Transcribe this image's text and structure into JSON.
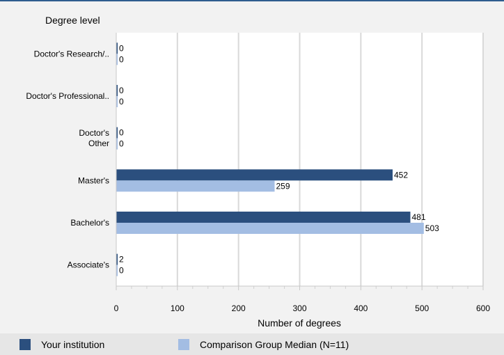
{
  "chart_data": {
    "type": "bar",
    "orientation": "horizontal",
    "ylabel": "Degree level",
    "xlabel": "Number of degrees",
    "xlim": [
      0,
      600
    ],
    "xticks": [
      0,
      100,
      200,
      300,
      400,
      500,
      600
    ],
    "grid": true,
    "categories": [
      [
        "Doctor's  Research/.."
      ],
      [
        "Doctor's  Professional.."
      ],
      [
        "Doctor's",
        "Other"
      ],
      [
        "Master's"
      ],
      [
        "Bachelor's"
      ],
      [
        "Associate's"
      ]
    ],
    "series": [
      {
        "name": "Your institution",
        "color": "#2b4f7e",
        "values": [
          0,
          0,
          0,
          452,
          481,
          2
        ]
      },
      {
        "name": "Comparison Group Median (N=11)",
        "color": "#a3bde3",
        "values": [
          0,
          0,
          0,
          259,
          503,
          0
        ]
      }
    ],
    "legend_position": "bottom"
  }
}
